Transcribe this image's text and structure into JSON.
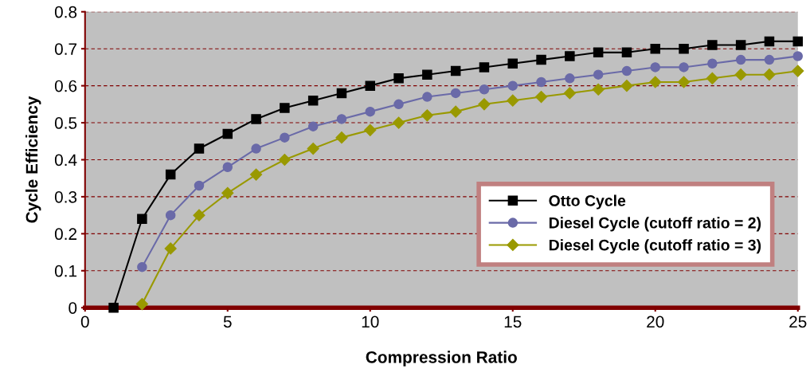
{
  "chart_data": {
    "type": "line",
    "xlabel": "Compression Ratio",
    "ylabel": "Cycle Efficiency",
    "xlim": [
      0,
      25
    ],
    "xticks": [
      0,
      5,
      10,
      15,
      20,
      25
    ],
    "ylim": [
      0,
      0.8
    ],
    "yticks": [
      0,
      0.1,
      0.2,
      0.3,
      0.4,
      0.5,
      0.6,
      0.7,
      0.8
    ],
    "grid": "y",
    "legend": "bottom right",
    "line_style": "solid",
    "series": [
      {
        "name": "Otto Cycle",
        "color": "#000000",
        "marker": "square",
        "x": [
          1,
          2,
          3,
          4,
          5,
          6,
          7,
          8,
          9,
          10,
          11,
          12,
          13,
          14,
          15,
          16,
          17,
          18,
          19,
          20,
          21,
          22,
          23,
          24,
          25
        ],
        "values": [
          0,
          0.24,
          0.36,
          0.43,
          0.47,
          0.51,
          0.54,
          0.56,
          0.58,
          0.6,
          0.62,
          0.63,
          0.64,
          0.65,
          0.66,
          0.67,
          0.68,
          0.69,
          0.69,
          0.7,
          0.7,
          0.71,
          0.71,
          0.72,
          0.72
        ]
      },
      {
        "name": "Diesel Cycle (cutoff ratio = 2)",
        "color": "#6a6aa8",
        "marker": "circle",
        "x": [
          2,
          3,
          4,
          5,
          6,
          7,
          8,
          9,
          10,
          11,
          12,
          13,
          14,
          15,
          16,
          17,
          18,
          19,
          20,
          21,
          22,
          23,
          24,
          25
        ],
        "values": [
          0.11,
          0.25,
          0.33,
          0.38,
          0.43,
          0.46,
          0.49,
          0.51,
          0.53,
          0.55,
          0.57,
          0.58,
          0.59,
          0.6,
          0.61,
          0.62,
          0.63,
          0.64,
          0.65,
          0.65,
          0.66,
          0.67,
          0.67,
          0.68
        ]
      },
      {
        "name": "Diesel Cycle (cutoff ratio = 3)",
        "color": "#999900",
        "marker": "diamond",
        "x": [
          2,
          3,
          4,
          5,
          6,
          7,
          8,
          9,
          10,
          11,
          12,
          13,
          14,
          15,
          16,
          17,
          18,
          19,
          20,
          21,
          22,
          23,
          24,
          25
        ],
        "values": [
          0.01,
          0.16,
          0.25,
          0.31,
          0.36,
          0.4,
          0.43,
          0.46,
          0.48,
          0.5,
          0.52,
          0.53,
          0.55,
          0.56,
          0.57,
          0.58,
          0.59,
          0.6,
          0.61,
          0.61,
          0.62,
          0.63,
          0.63,
          0.64
        ]
      }
    ]
  }
}
